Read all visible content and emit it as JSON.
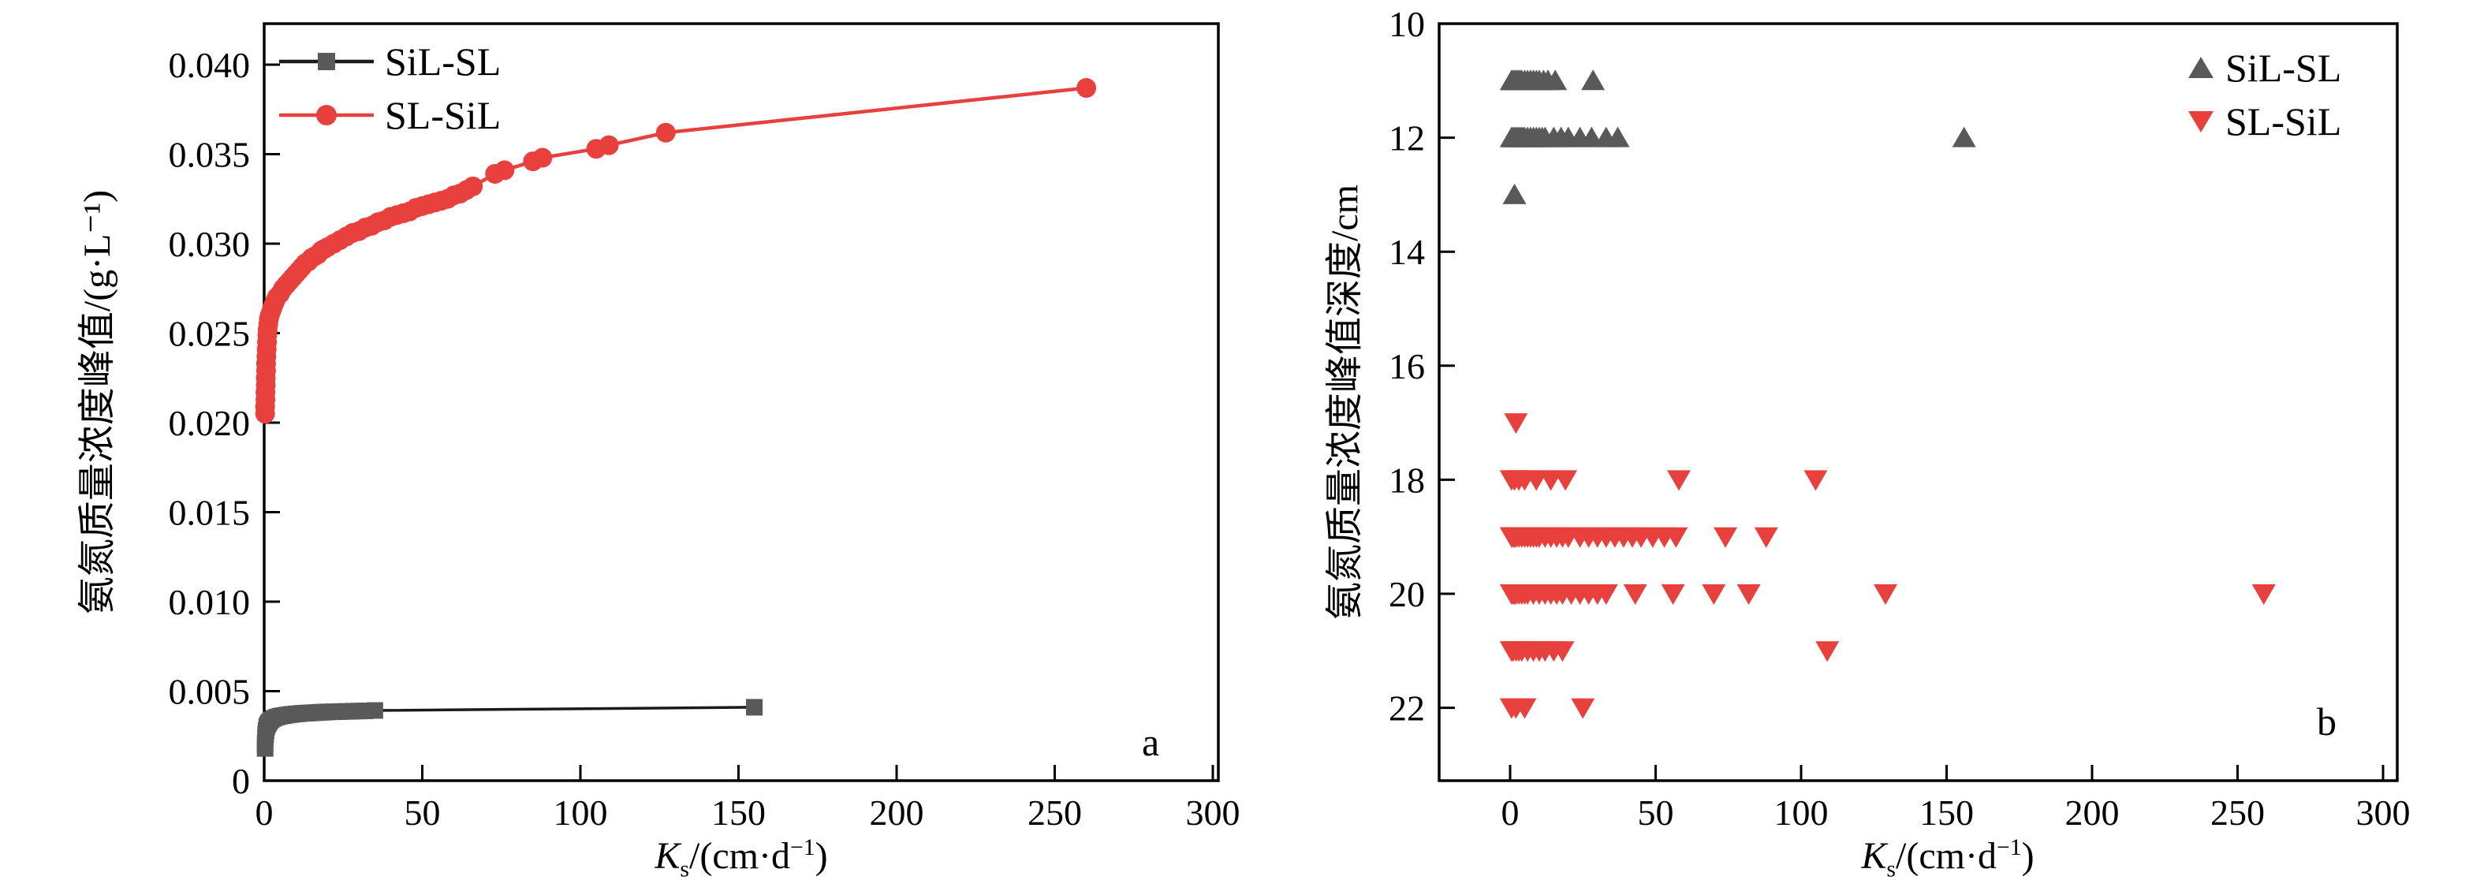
{
  "figure": {
    "background": "#ffffff"
  },
  "colors": {
    "dark_gray": "#595959",
    "black_line": "#1a1a1a",
    "red": "#e8403d"
  },
  "chart_data": [
    {
      "id": "a",
      "type": "line-scatter",
      "panel_label": "a",
      "xlabel": {
        "main": "K",
        "sub": "s",
        "open": "/(cm·d",
        "sup": "−1",
        "close": ")"
      },
      "ylabel": "氨氮质量浓度峰值/(g·L⁻¹)",
      "xlim": [
        0,
        300
      ],
      "ylim": [
        0,
        0.042
      ],
      "grid": false,
      "legend_position": "top-left",
      "xticks": [
        0,
        50,
        100,
        150,
        200,
        250,
        300
      ],
      "xtick_labels": [
        "0",
        "50",
        "100",
        "150",
        "200",
        "250",
        "300"
      ],
      "yticks": [
        0,
        0.005,
        0.01,
        0.015,
        0.02,
        0.025,
        0.03,
        0.035,
        0.04
      ],
      "ytick_labels": [
        "0",
        "0.005",
        "0.010",
        "0.015",
        "0.020",
        "0.025",
        "0.030",
        "0.035",
        "0.040"
      ],
      "legend": [
        {
          "label": "SiL-SL",
          "marker": "square",
          "color": "#595959",
          "line_color": "#1a1a1a"
        },
        {
          "label": "SL-SiL",
          "marker": "circle",
          "color": "#e8403d",
          "line_color": "#e8403d"
        }
      ],
      "series": [
        {
          "name": "SiL-SL",
          "marker": "square",
          "color": "#595959",
          "line_color": "#1a1a1a",
          "points": [
            [
              0.3,
              0.0018
            ],
            [
              0.3,
              0.0021
            ],
            [
              0.4,
              0.0024
            ],
            [
              0.5,
              0.0026
            ],
            [
              0.6,
              0.0028
            ],
            [
              0.8,
              0.003
            ],
            [
              1,
              0.0031
            ],
            [
              1.3,
              0.0032
            ],
            [
              1.7,
              0.0033
            ],
            [
              2.2,
              0.0034
            ],
            [
              3,
              0.00348
            ],
            [
              4,
              0.00355
            ],
            [
              5,
              0.0036
            ],
            [
              6,
              0.00363
            ],
            [
              7,
              0.00366
            ],
            [
              8,
              0.00369
            ],
            [
              9,
              0.00371
            ],
            [
              10,
              0.00373
            ],
            [
              11,
              0.00374
            ],
            [
              12,
              0.00376
            ],
            [
              13,
              0.00377
            ],
            [
              14,
              0.00378
            ],
            [
              15,
              0.00379
            ],
            [
              16,
              0.0038
            ],
            [
              17,
              0.00381
            ],
            [
              18,
              0.00382
            ],
            [
              19,
              0.00383
            ],
            [
              20,
              0.00384
            ],
            [
              22,
              0.00385
            ],
            [
              24,
              0.00386
            ],
            [
              26,
              0.00387
            ],
            [
              28,
              0.00388
            ],
            [
              30,
              0.00389
            ],
            [
              32,
              0.0039
            ],
            [
              35,
              0.00392
            ],
            [
              155,
              0.0041
            ]
          ]
        },
        {
          "name": "SL-SiL",
          "marker": "circle",
          "color": "#e8403d",
          "line_color": "#e8403d",
          "points": [
            [
              0.3,
              0.0205
            ],
            [
              0.3,
              0.0209
            ],
            [
              0.4,
              0.0213
            ],
            [
              0.4,
              0.0217
            ],
            [
              0.5,
              0.0221
            ],
            [
              0.5,
              0.0225
            ],
            [
              0.6,
              0.0229
            ],
            [
              0.6,
              0.0233
            ],
            [
              0.7,
              0.0237
            ],
            [
              0.8,
              0.0241
            ],
            [
              0.9,
              0.0245
            ],
            [
              1,
              0.0249
            ],
            [
              1.1,
              0.0252
            ],
            [
              1.3,
              0.0255
            ],
            [
              1.5,
              0.0258
            ],
            [
              1.8,
              0.026
            ],
            [
              2.2,
              0.0262
            ],
            [
              2.6,
              0.0264
            ],
            [
              3,
              0.0266
            ],
            [
              3.5,
              0.0268
            ],
            [
              4,
              0.027
            ],
            [
              5,
              0.0272
            ],
            [
              6,
              0.0275
            ],
            [
              7,
              0.0277
            ],
            [
              8,
              0.0279
            ],
            [
              9,
              0.0281
            ],
            [
              10,
              0.0283
            ],
            [
              11,
              0.0285
            ],
            [
              12,
              0.0287
            ],
            [
              13,
              0.0289
            ],
            [
              14,
              0.029
            ],
            [
              15,
              0.0292
            ],
            [
              16,
              0.0293
            ],
            [
              17,
              0.0294
            ],
            [
              18,
              0.0296
            ],
            [
              19,
              0.0297
            ],
            [
              20,
              0.0298
            ],
            [
              22,
              0.03
            ],
            [
              24,
              0.0302
            ],
            [
              26,
              0.0304
            ],
            [
              28,
              0.0306
            ],
            [
              30,
              0.0307
            ],
            [
              32,
              0.0309
            ],
            [
              34,
              0.031
            ],
            [
              36,
              0.0312
            ],
            [
              38,
              0.0313
            ],
            [
              40,
              0.0315
            ],
            [
              42,
              0.0316
            ],
            [
              44,
              0.0317
            ],
            [
              46,
              0.0318
            ],
            [
              48,
              0.032
            ],
            [
              50,
              0.0321
            ],
            [
              52,
              0.0322
            ],
            [
              54,
              0.0323
            ],
            [
              56,
              0.0324
            ],
            [
              58,
              0.0325
            ],
            [
              60,
              0.0327
            ],
            [
              62,
              0.0328
            ],
            [
              64,
              0.033
            ],
            [
              66,
              0.0332
            ],
            [
              73,
              0.0339
            ],
            [
              76,
              0.0341
            ],
            [
              85,
              0.0346
            ],
            [
              88,
              0.0348
            ],
            [
              105,
              0.0353
            ],
            [
              109,
              0.0355
            ],
            [
              127,
              0.0362
            ],
            [
              260,
              0.0387
            ]
          ]
        }
      ]
    },
    {
      "id": "b",
      "type": "scatter",
      "panel_label": "b",
      "xlabel": {
        "main": "K",
        "sub": "s",
        "open": "/(cm·d",
        "sup": "−1",
        "close": ")"
      },
      "ylabel": "氨氮质量浓度峰值深度/cm",
      "xlim": [
        0,
        300
      ],
      "ylim": [
        10,
        23.3
      ],
      "y_inverted": true,
      "grid": false,
      "legend_position": "top-right",
      "xticks": [
        0,
        50,
        100,
        150,
        200,
        250,
        300
      ],
      "xtick_labels": [
        "0",
        "50",
        "100",
        "150",
        "200",
        "250",
        "300"
      ],
      "yticks": [
        10,
        12,
        14,
        16,
        18,
        20,
        22
      ],
      "ytick_labels": [
        "10",
        "12",
        "14",
        "16",
        "18",
        "20",
        "22"
      ],
      "legend": [
        {
          "label": "SiL-SL",
          "marker": "triangle-up",
          "color": "#595959"
        },
        {
          "label": "SL-SiL",
          "marker": "triangle-down",
          "color": "#e8403d"
        }
      ],
      "series": [
        {
          "name": "SiL-SL",
          "marker": "triangle-up",
          "color": "#595959",
          "points": [
            [
              0.5,
              11
            ],
            [
              1,
              11
            ],
            [
              1.5,
              11
            ],
            [
              2,
              11
            ],
            [
              2.5,
              11
            ],
            [
              3,
              11
            ],
            [
              3.5,
              11
            ],
            [
              4,
              11
            ],
            [
              5,
              11
            ],
            [
              6,
              11
            ],
            [
              7,
              11
            ],
            [
              8,
              11
            ],
            [
              9,
              11
            ],
            [
              10,
              11
            ],
            [
              11.5,
              11
            ],
            [
              13,
              11
            ],
            [
              15.5,
              11
            ],
            [
              28.5,
              11
            ],
            [
              0.5,
              12
            ],
            [
              1,
              12
            ],
            [
              1.5,
              12
            ],
            [
              2,
              12
            ],
            [
              2.5,
              12
            ],
            [
              3,
              12
            ],
            [
              3.5,
              12
            ],
            [
              4,
              12
            ],
            [
              4.5,
              12
            ],
            [
              5,
              12
            ],
            [
              6,
              12
            ],
            [
              7,
              12
            ],
            [
              8,
              12
            ],
            [
              9,
              12
            ],
            [
              10,
              12
            ],
            [
              11,
              12
            ],
            [
              12,
              12
            ],
            [
              15,
              12
            ],
            [
              17.5,
              12
            ],
            [
              20,
              12
            ],
            [
              24,
              12
            ],
            [
              28,
              12
            ],
            [
              33,
              12
            ],
            [
              37,
              12
            ],
            [
              156,
              12
            ],
            [
              1.5,
              13
            ]
          ]
        },
        {
          "name": "SL-SiL",
          "marker": "triangle-down",
          "color": "#e8403d",
          "points": [
            [
              2,
              17
            ],
            [
              0.5,
              18
            ],
            [
              1.5,
              18
            ],
            [
              3,
              18
            ],
            [
              5,
              18
            ],
            [
              9,
              18
            ],
            [
              14,
              18
            ],
            [
              19,
              18
            ],
            [
              58,
              18
            ],
            [
              105,
              18
            ],
            [
              0.5,
              19
            ],
            [
              1,
              19
            ],
            [
              1.5,
              19
            ],
            [
              2,
              19
            ],
            [
              3,
              19
            ],
            [
              4,
              19
            ],
            [
              5,
              19
            ],
            [
              6,
              19
            ],
            [
              7,
              19
            ],
            [
              8,
              19
            ],
            [
              9,
              19
            ],
            [
              10,
              19
            ],
            [
              12,
              19
            ],
            [
              14,
              19
            ],
            [
              16,
              19
            ],
            [
              18,
              19
            ],
            [
              20,
              19
            ],
            [
              24,
              19
            ],
            [
              27,
              19
            ],
            [
              30,
              19
            ],
            [
              33,
              19
            ],
            [
              36,
              19
            ],
            [
              39,
              19
            ],
            [
              42,
              19
            ],
            [
              45,
              19
            ],
            [
              49,
              19
            ],
            [
              53,
              19
            ],
            [
              57,
              19
            ],
            [
              74,
              19
            ],
            [
              88,
              19
            ],
            [
              0.5,
              20
            ],
            [
              1,
              20
            ],
            [
              1.5,
              20
            ],
            [
              2,
              20
            ],
            [
              3,
              20
            ],
            [
              4,
              20
            ],
            [
              5,
              20
            ],
            [
              6,
              20
            ],
            [
              8,
              20
            ],
            [
              10,
              20
            ],
            [
              12,
              20
            ],
            [
              14,
              20
            ],
            [
              16,
              20
            ],
            [
              18,
              20
            ],
            [
              21,
              20
            ],
            [
              24,
              20
            ],
            [
              27,
              20
            ],
            [
              30,
              20
            ],
            [
              33,
              20
            ],
            [
              43,
              20
            ],
            [
              56,
              20
            ],
            [
              70,
              20
            ],
            [
              82,
              20
            ],
            [
              129,
              20
            ],
            [
              259,
              20
            ],
            [
              0.5,
              21
            ],
            [
              1,
              21
            ],
            [
              2,
              21
            ],
            [
              3,
              21
            ],
            [
              4,
              21
            ],
            [
              6,
              21
            ],
            [
              8,
              21
            ],
            [
              10,
              21
            ],
            [
              12,
              21
            ],
            [
              15,
              21
            ],
            [
              18,
              21
            ],
            [
              109,
              21
            ],
            [
              0.5,
              22
            ],
            [
              2,
              22
            ],
            [
              5,
              22
            ],
            [
              25,
              22
            ]
          ]
        }
      ]
    }
  ]
}
